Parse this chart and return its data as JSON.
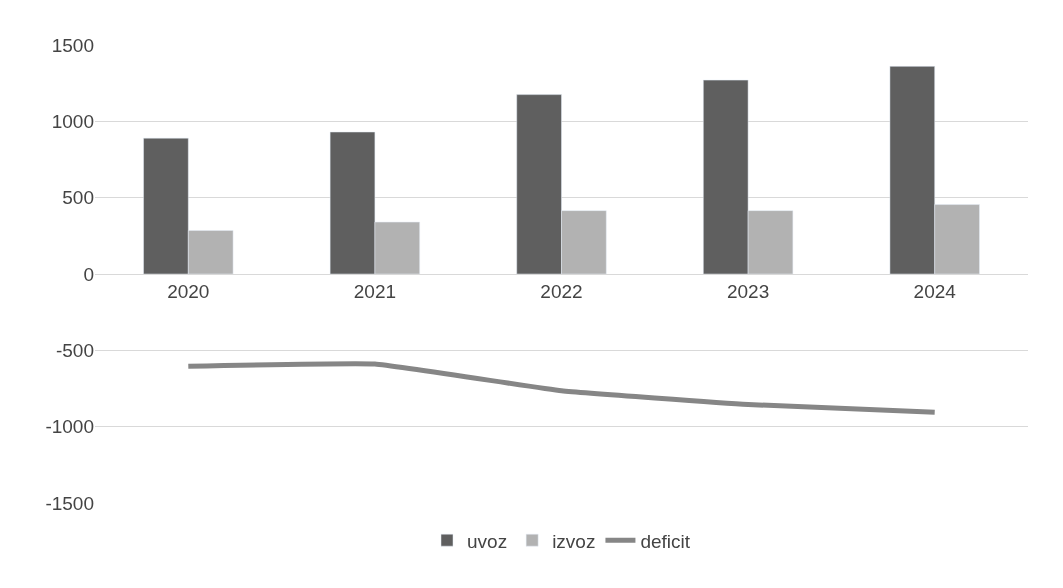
{
  "chart_data": {
    "type": "bar",
    "categories": [
      "2020",
      "2021",
      "2022",
      "2023",
      "2024"
    ],
    "series": [
      {
        "name": "uvoz",
        "color": "#5f5f5f",
        "values": [
          890,
          930,
          1175,
          1270,
          1360
        ]
      },
      {
        "name": "izvoz",
        "color": "#b2b2b2",
        "values": [
          285,
          340,
          415,
          415,
          455
        ]
      },
      {
        "name": "deficit",
        "type": "line",
        "color": "#868686",
        "values": [
          -605,
          -590,
          -765,
          -855,
          -905
        ]
      }
    ],
    "ylim": [
      -1500,
      1500
    ],
    "yticks": [
      -1500,
      -1000,
      -500,
      0,
      500,
      1000,
      1500
    ],
    "grid": "y",
    "legend": "bottom"
  }
}
